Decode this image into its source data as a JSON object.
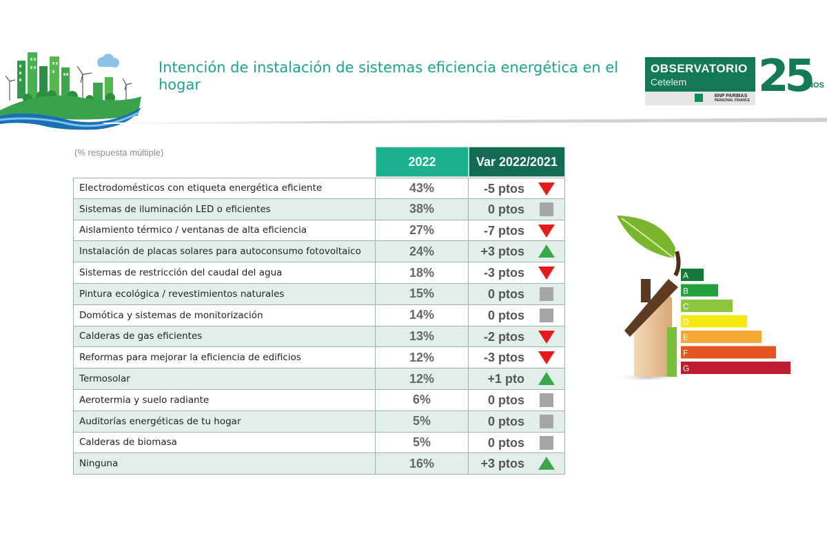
{
  "header": {
    "title": "Intención de instalación de sistemas eficiencia energética en el hogar",
    "brand_name": "OBSERVATORIO",
    "brand_sub": "Cetelem",
    "brand_parent": "BNP PARIBAS",
    "brand_parent_sub": "PERSONAL FINANCE",
    "anniversary_number": "25",
    "anniversary_word": "AÑOS"
  },
  "table": {
    "note": "(% respuesta múltiple)",
    "col_year": "2022",
    "col_var": "Var 2022/2021",
    "rows": [
      {
        "label": "Electrodomésticos con etiqueta energética eficiente",
        "pct": "43%",
        "var": "-5 ptos",
        "trend": "down"
      },
      {
        "label": "Sistemas de iluminación LED o eficientes",
        "pct": "38%",
        "var": "0 ptos",
        "trend": "flat"
      },
      {
        "label": "Aislamiento térmico / ventanas de alta eficiencia",
        "pct": "27%",
        "var": "-7 ptos",
        "trend": "down"
      },
      {
        "label": "Instalación de placas solares para autoconsumo fotovoltaico",
        "pct": "24%",
        "var": "+3 ptos",
        "trend": "up"
      },
      {
        "label": "Sistemas de restricción del caudal del agua",
        "pct": "18%",
        "var": "-3 ptos",
        "trend": "down"
      },
      {
        "label": "Pintura ecológica / revestimientos naturales",
        "pct": "15%",
        "var": "0 ptos",
        "trend": "flat"
      },
      {
        "label": "Domótica y sistemas de monitorización",
        "pct": "14%",
        "var": "0 ptos",
        "trend": "flat"
      },
      {
        "label": "Calderas de gas eficientes",
        "pct": "13%",
        "var": "-2 ptos",
        "trend": "down"
      },
      {
        "label": "Reformas para mejorar la eficiencia de edificios",
        "pct": "12%",
        "var": "-3 ptos",
        "trend": "down"
      },
      {
        "label": "Termosolar",
        "pct": "12%",
        "var": "+1 pto",
        "trend": "up"
      },
      {
        "label": "Aerotermia y suelo radiante",
        "pct": "6%",
        "var": "0 ptos",
        "trend": "flat"
      },
      {
        "label": "Auditorías energéticas de tu hogar",
        "pct": "5%",
        "var": "0 ptos",
        "trend": "flat"
      },
      {
        "label": "Calderas de biomasa",
        "pct": "5%",
        "var": "0 ptos",
        "trend": "flat"
      },
      {
        "label": "Ninguna",
        "pct": "16%",
        "var": "+3 ptos",
        "trend": "up"
      }
    ]
  },
  "energy_label": {
    "classes": [
      "A",
      "B",
      "C",
      "D",
      "E",
      "F",
      "G"
    ],
    "colors": [
      "#137a3a",
      "#24a03c",
      "#8cc63e",
      "#f6e812",
      "#f5a733",
      "#e4561f",
      "#c01c2e"
    ]
  },
  "colors": {
    "title": "#1aa58a",
    "header_year": "#1cb08f",
    "header_var": "#136b52",
    "row_alt": "#e2efe9",
    "trend_up": "#3aa84a",
    "trend_down": "#e31b1b",
    "trend_flat": "#a6a6a6"
  }
}
